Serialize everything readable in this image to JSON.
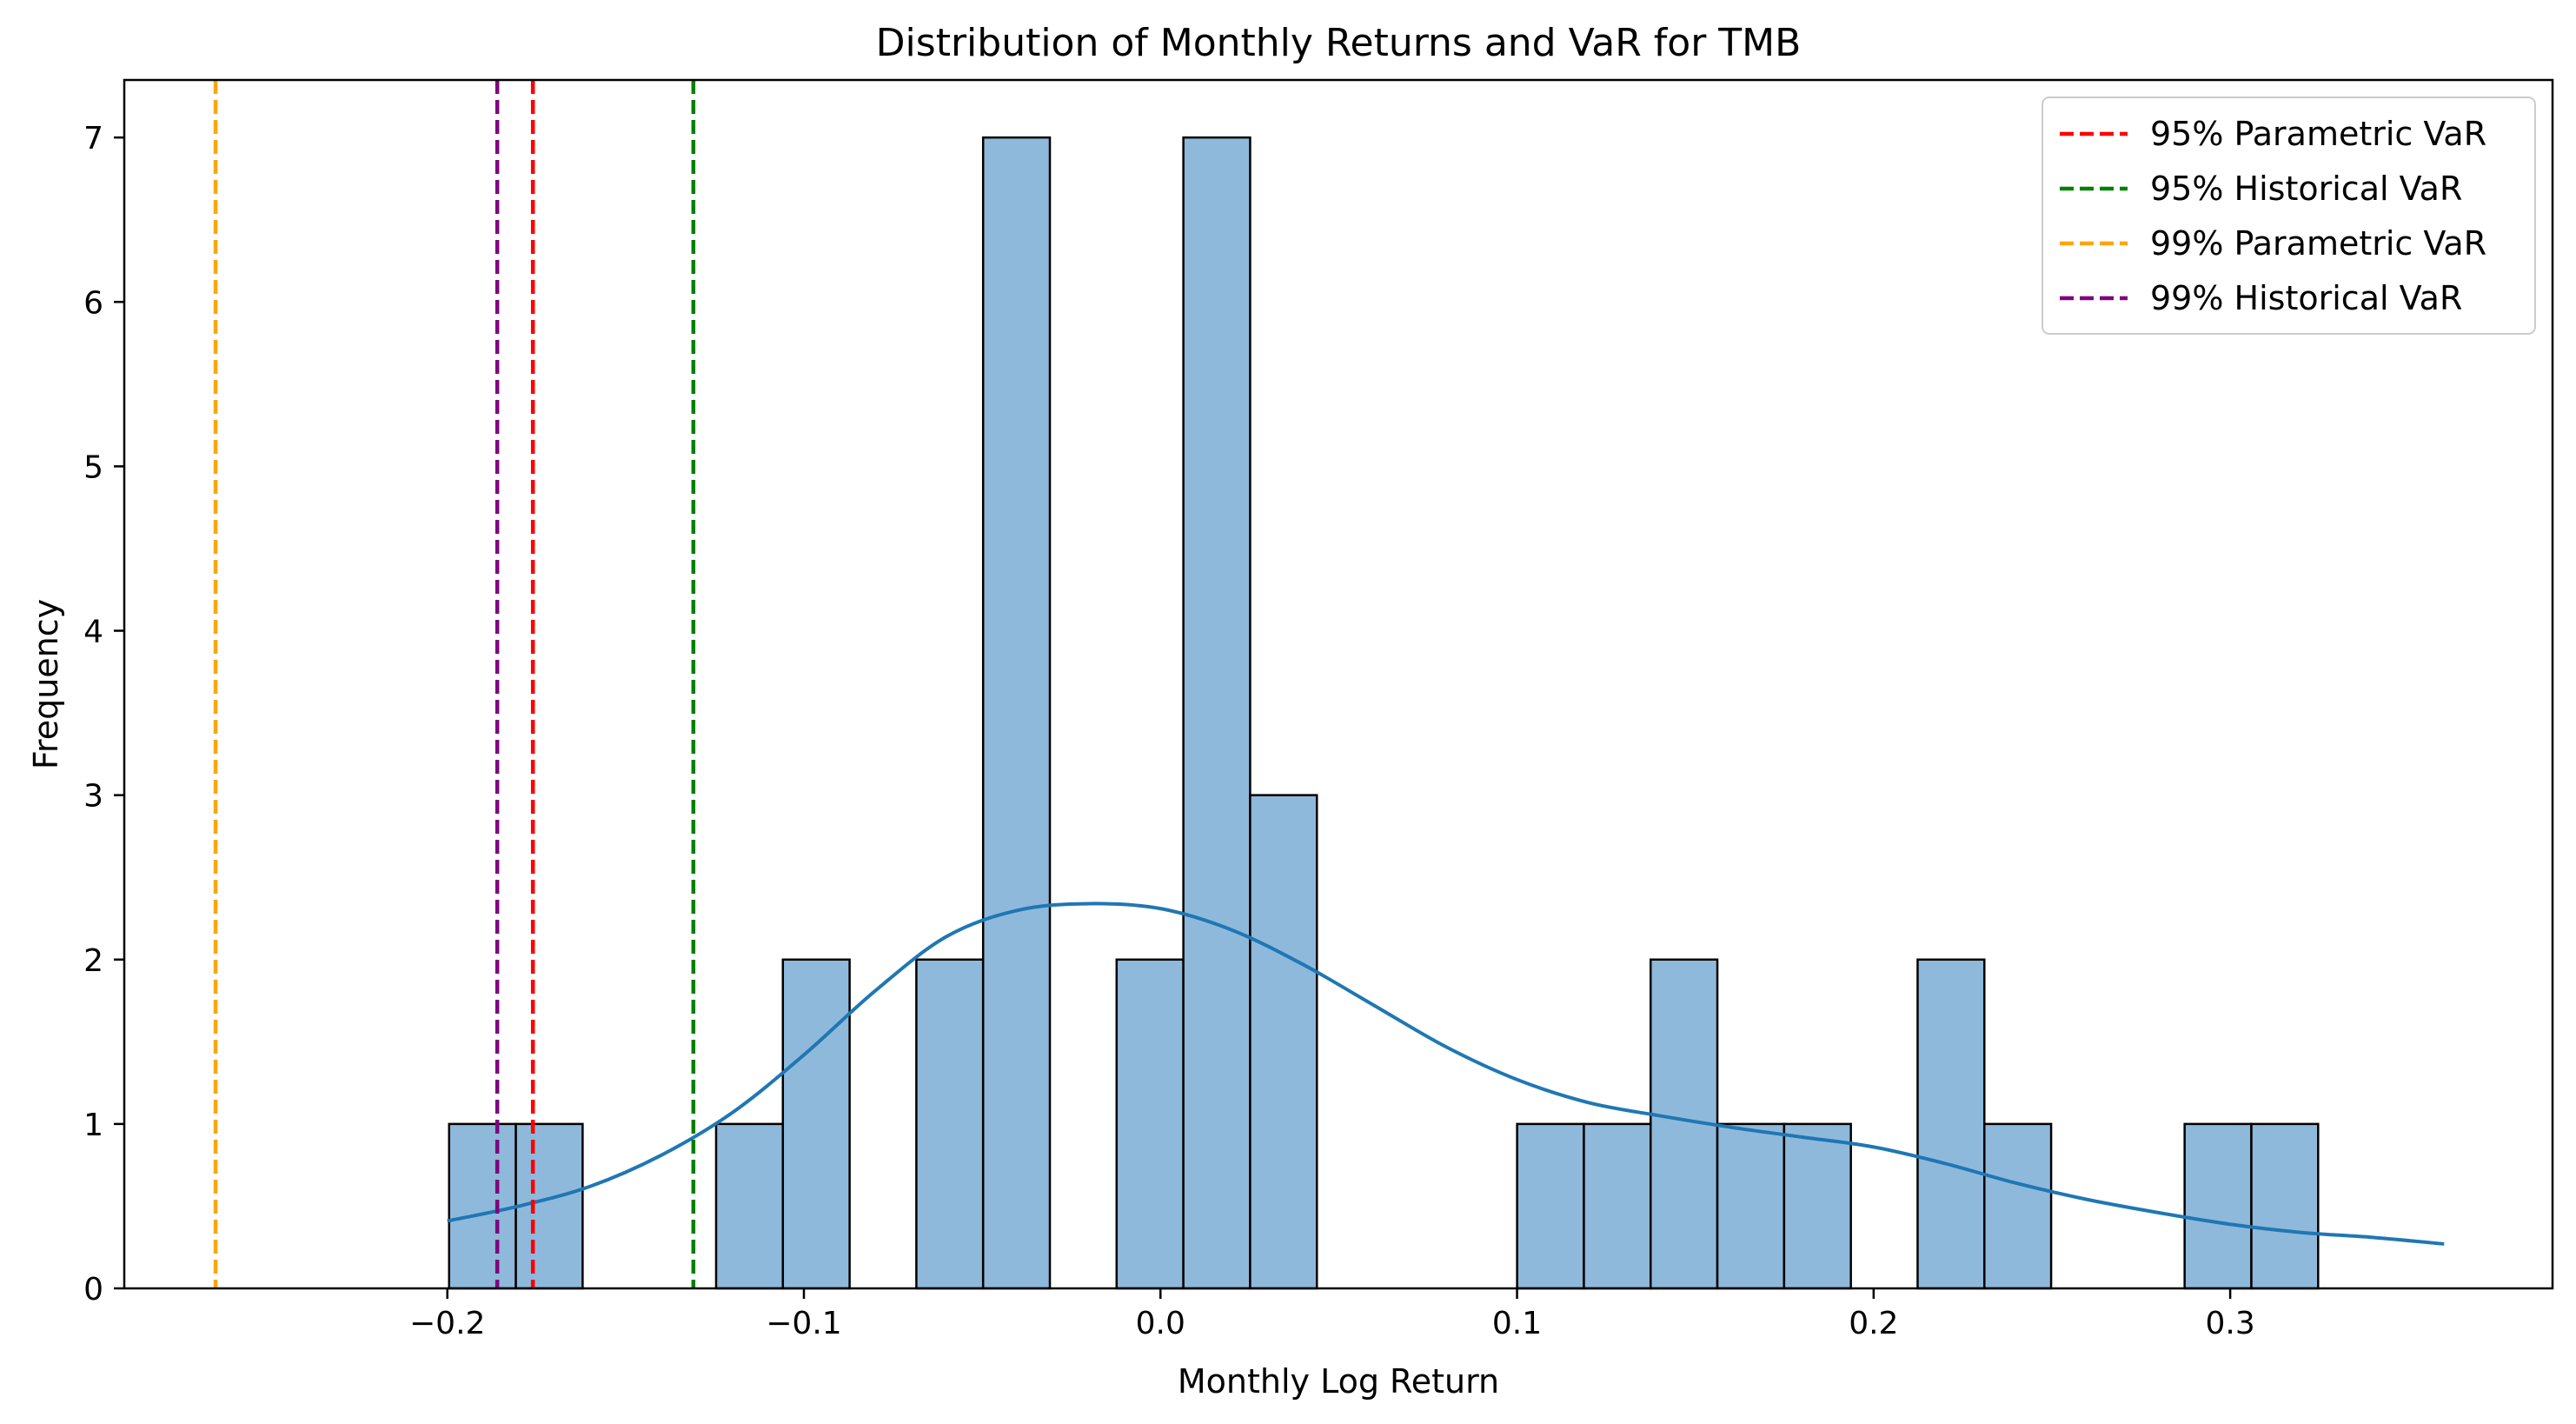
{
  "chart_data": {
    "type": "bar",
    "title": "Distribution of Monthly Returns and VaR for TMB",
    "xlabel": "Monthly Log Return",
    "ylabel": "Frequency",
    "xlim": [
      -0.2906,
      0.3904
    ],
    "ylim": [
      0,
      7.35
    ],
    "xticks": [
      -0.2,
      -0.1,
      0.0,
      0.1,
      0.2,
      0.3
    ],
    "xtick_labels": [
      "−0.2",
      "−0.1",
      "0.0",
      "0.1",
      "0.2",
      "0.3"
    ],
    "yticks": [
      0,
      1,
      2,
      3,
      4,
      5,
      6,
      7
    ],
    "ytick_labels": [
      "0",
      "1",
      "2",
      "3",
      "4",
      "5",
      "6",
      "7"
    ],
    "bins": {
      "start": -0.1995,
      "width": 0.01872,
      "counts": [
        1,
        1,
        0,
        0,
        1,
        2,
        0,
        2,
        7,
        0,
        2,
        7,
        3,
        0,
        0,
        0,
        1,
        1,
        2,
        1,
        1,
        0,
        2,
        1,
        0,
        0,
        1,
        1
      ],
      "color": "#8fb9db",
      "edgecolor": "#000000"
    },
    "kde": {
      "name": "",
      "color": "#1f77b4",
      "x": [
        -0.2,
        -0.18,
        -0.16,
        -0.14,
        -0.12,
        -0.1,
        -0.08,
        -0.06,
        -0.04,
        -0.02,
        0.0,
        0.02,
        0.04,
        0.06,
        0.08,
        0.1,
        0.12,
        0.14,
        0.16,
        0.18,
        0.2,
        0.22,
        0.24,
        0.26,
        0.28,
        0.3,
        0.32,
        0.34,
        0.36
      ],
      "y": [
        0.41,
        0.5,
        0.62,
        0.81,
        1.07,
        1.42,
        1.81,
        2.14,
        2.3,
        2.34,
        2.31,
        2.18,
        1.97,
        1.72,
        1.47,
        1.27,
        1.13,
        1.05,
        0.98,
        0.92,
        0.86,
        0.76,
        0.64,
        0.54,
        0.46,
        0.39,
        0.34,
        0.31,
        0.27
      ]
    },
    "var_lines": [
      {
        "name": "95% Parametric VaR",
        "x": -0.176,
        "color": "#ff0000"
      },
      {
        "name": "95% Historical VaR",
        "x": -0.131,
        "color": "#008000"
      },
      {
        "name": "99% Parametric VaR",
        "x": -0.265,
        "color": "#ffa500"
      },
      {
        "name": "99% Historical VaR",
        "x": -0.186,
        "color": "#800080"
      }
    ],
    "grid": false,
    "legend_position": "top-right"
  }
}
